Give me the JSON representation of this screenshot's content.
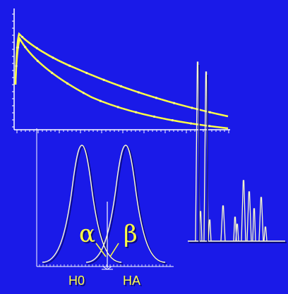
{
  "colors": {
    "background": "#1a1ae8",
    "axis": "#ffffff",
    "curve": "#ffff44",
    "distribution": "#ffffcc",
    "label": "#ffff44",
    "shadow": "#0a0a7a"
  },
  "hypothesis": {
    "alpha_symbol": "α",
    "beta_symbol": "β",
    "null_label": "H0",
    "alt_label": "HA"
  }
}
